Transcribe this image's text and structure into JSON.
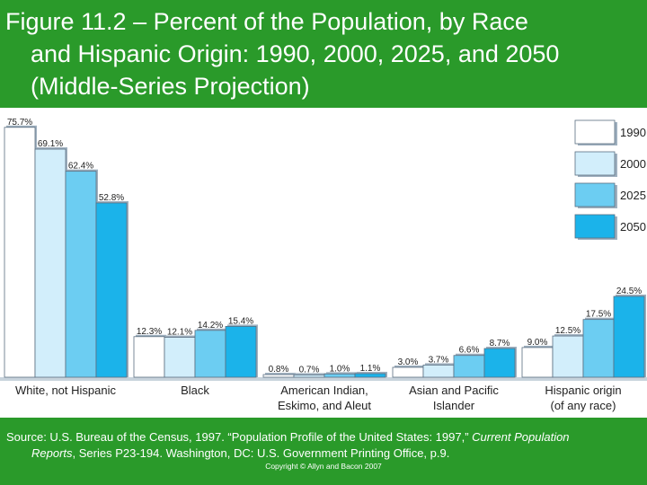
{
  "title": {
    "line1": "Figure 11.2 – Percent of the Population, by Race",
    "line2": "and Hispanic Origin: 1990, 2000, 2025, and 2050",
    "line3": "(Middle-Series Projection)"
  },
  "colors": {
    "background": "#2a9a2a",
    "series": [
      "#ffffff",
      "#d2eefb",
      "#6ccdf2",
      "#1bb3ea"
    ],
    "bar_edge": "#5a6e80"
  },
  "chart_data": {
    "type": "bar",
    "title": "Percent of the Population, by Race and Hispanic Origin: 1990, 2000, 2025, and 2050 (Middle-Series Projection)",
    "categories": [
      [
        "White, not Hispanic"
      ],
      [
        "Black"
      ],
      [
        "American Indian,",
        "Eskimo, and Aleut"
      ],
      [
        "Asian and Pacific",
        "Islander"
      ],
      [
        "Hispanic origin",
        "(of any race)"
      ]
    ],
    "series": [
      {
        "name": "1990",
        "values": [
          75.7,
          12.3,
          0.8,
          3.0,
          9.0
        ]
      },
      {
        "name": "2000",
        "values": [
          69.1,
          12.1,
          0.7,
          3.7,
          12.5
        ]
      },
      {
        "name": "2025",
        "values": [
          62.4,
          14.2,
          1.0,
          6.6,
          17.5
        ]
      },
      {
        "name": "2050",
        "values": [
          52.8,
          15.4,
          1.1,
          8.7,
          24.5
        ]
      }
    ],
    "value_labels": [
      [
        "75.7%",
        "12.3%",
        "0.8%",
        "3.0%",
        "9.0%"
      ],
      [
        "69.1%",
        "12.1%",
        "0.7%",
        "3.7%",
        "12.5%"
      ],
      [
        "62.4%",
        "14.2%",
        "1.0%",
        "6.6%",
        "17.5%"
      ],
      [
        "52.8%",
        "15.4%",
        "1.1%",
        "8.7%",
        "24.5%"
      ]
    ],
    "ylim": [
      0,
      77
    ],
    "xlabel": "",
    "ylabel": "",
    "grid": false,
    "legend": "top-right"
  },
  "footer": {
    "source_prefix": "Source: U.S. Bureau of the Census, 1997. “Population Profile of the United States: 1997,” ",
    "source_italic1": "Current Population",
    "source_italic2": "Reports",
    "source_suffix": ", Series P23-194. Washington, DC: U.S. Government Printing Office, p.9.",
    "copyright": "Copyright © Allyn and Bacon 2007"
  }
}
